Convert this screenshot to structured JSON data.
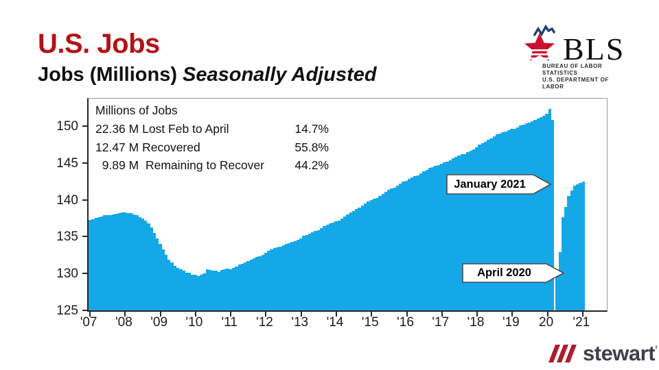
{
  "header": {
    "title": "U.S. Jobs",
    "subtitle": "Jobs (Millions)",
    "subtitle_italic": "Seasonally Adjusted"
  },
  "bls_logo": {
    "acronym": "BLS",
    "caption_line1": "BUREAU OF LABOR STATISTICS",
    "caption_line2": "U.S. DEPARTMENT OF LABOR"
  },
  "stewart_logo": {
    "text": "stewart"
  },
  "chart_data": {
    "type": "bar",
    "title": "Millions of Jobs",
    "xlabel": "",
    "ylabel": "Millions of Jobs",
    "grid": false,
    "legend_position": "none",
    "bar_color": "#15a8e8",
    "ylim": [
      125,
      154
    ],
    "y_ticks": [
      125,
      130,
      135,
      140,
      145,
      150
    ],
    "x_start_month": "2007-01",
    "x_end_month": "2021-01",
    "x_tick_labels": [
      "'07",
      "'08",
      "'09",
      "'10",
      "'11",
      "'12",
      "'13",
      "'14",
      "'15",
      "'16",
      "'17",
      "'18",
      "'19",
      "20",
      "'21"
    ],
    "gap_index": 159,
    "gap_month": "2020-04",
    "values": [
      137.4,
      137.5,
      137.7,
      137.8,
      137.9,
      138.0,
      138.0,
      138.0,
      138.1,
      138.2,
      138.3,
      138.4,
      138.4,
      138.3,
      138.3,
      138.1,
      138.0,
      137.8,
      137.6,
      137.3,
      136.9,
      136.4,
      135.6,
      134.9,
      134.1,
      133.4,
      132.6,
      131.9,
      131.6,
      131.1,
      130.8,
      130.6,
      130.4,
      130.2,
      130.2,
      129.9,
      129.9,
      129.7,
      129.9,
      130.1,
      130.6,
      130.5,
      130.4,
      130.4,
      130.3,
      130.5,
      130.6,
      130.7,
      130.6,
      130.8,
      131.0,
      131.3,
      131.4,
      131.6,
      131.8,
      131.9,
      132.1,
      132.3,
      132.4,
      132.6,
      132.9,
      133.2,
      133.4,
      133.5,
      133.6,
      133.7,
      133.9,
      134.1,
      134.2,
      134.4,
      134.5,
      134.7,
      134.9,
      135.2,
      135.3,
      135.5,
      135.7,
      135.9,
      136.0,
      136.3,
      136.5,
      136.7,
      136.9,
      137.0,
      137.2,
      137.3,
      137.6,
      137.9,
      138.1,
      138.4,
      138.6,
      138.9,
      139.1,
      139.4,
      139.6,
      139.9,
      140.1,
      140.3,
      140.4,
      140.7,
      141.0,
      141.2,
      141.5,
      141.7,
      141.8,
      142.1,
      142.4,
      142.6,
      142.7,
      143.0,
      143.2,
      143.4,
      143.5,
      143.8,
      144.1,
      144.2,
      144.5,
      144.6,
      144.8,
      144.9,
      145.1,
      145.3,
      145.4,
      145.6,
      145.8,
      146.0,
      146.2,
      146.4,
      146.4,
      146.7,
      146.9,
      147.1,
      147.3,
      147.7,
      147.9,
      148.1,
      148.4,
      148.6,
      148.8,
      149.1,
      149.2,
      149.4,
      149.5,
      149.7,
      149.9,
      149.9,
      150.1,
      150.3,
      150.4,
      150.6,
      150.7,
      150.9,
      151.1,
      151.3,
      151.5,
      151.7,
      151.9,
      152.55,
      151.1,
      130.19,
      133.0,
      137.8,
      139.2,
      140.7,
      141.4,
      142.1,
      142.3,
      142.5,
      142.66
    ],
    "stats_rows": [
      {
        "label": "22.36 M Lost Feb to April",
        "pct": "14.7%"
      },
      {
        "label": "12.47 M Recovered",
        "pct": "55.8%"
      },
      {
        "label": "  9.89 M  Remaining to Recover",
        "pct": "44.2%"
      }
    ],
    "callouts": [
      {
        "label": "January 2021",
        "points_to": "2021-01 recovery level ~142.7M"
      },
      {
        "label": "April 2020",
        "points_to": "2020-04 trough ~130.2M"
      }
    ]
  }
}
